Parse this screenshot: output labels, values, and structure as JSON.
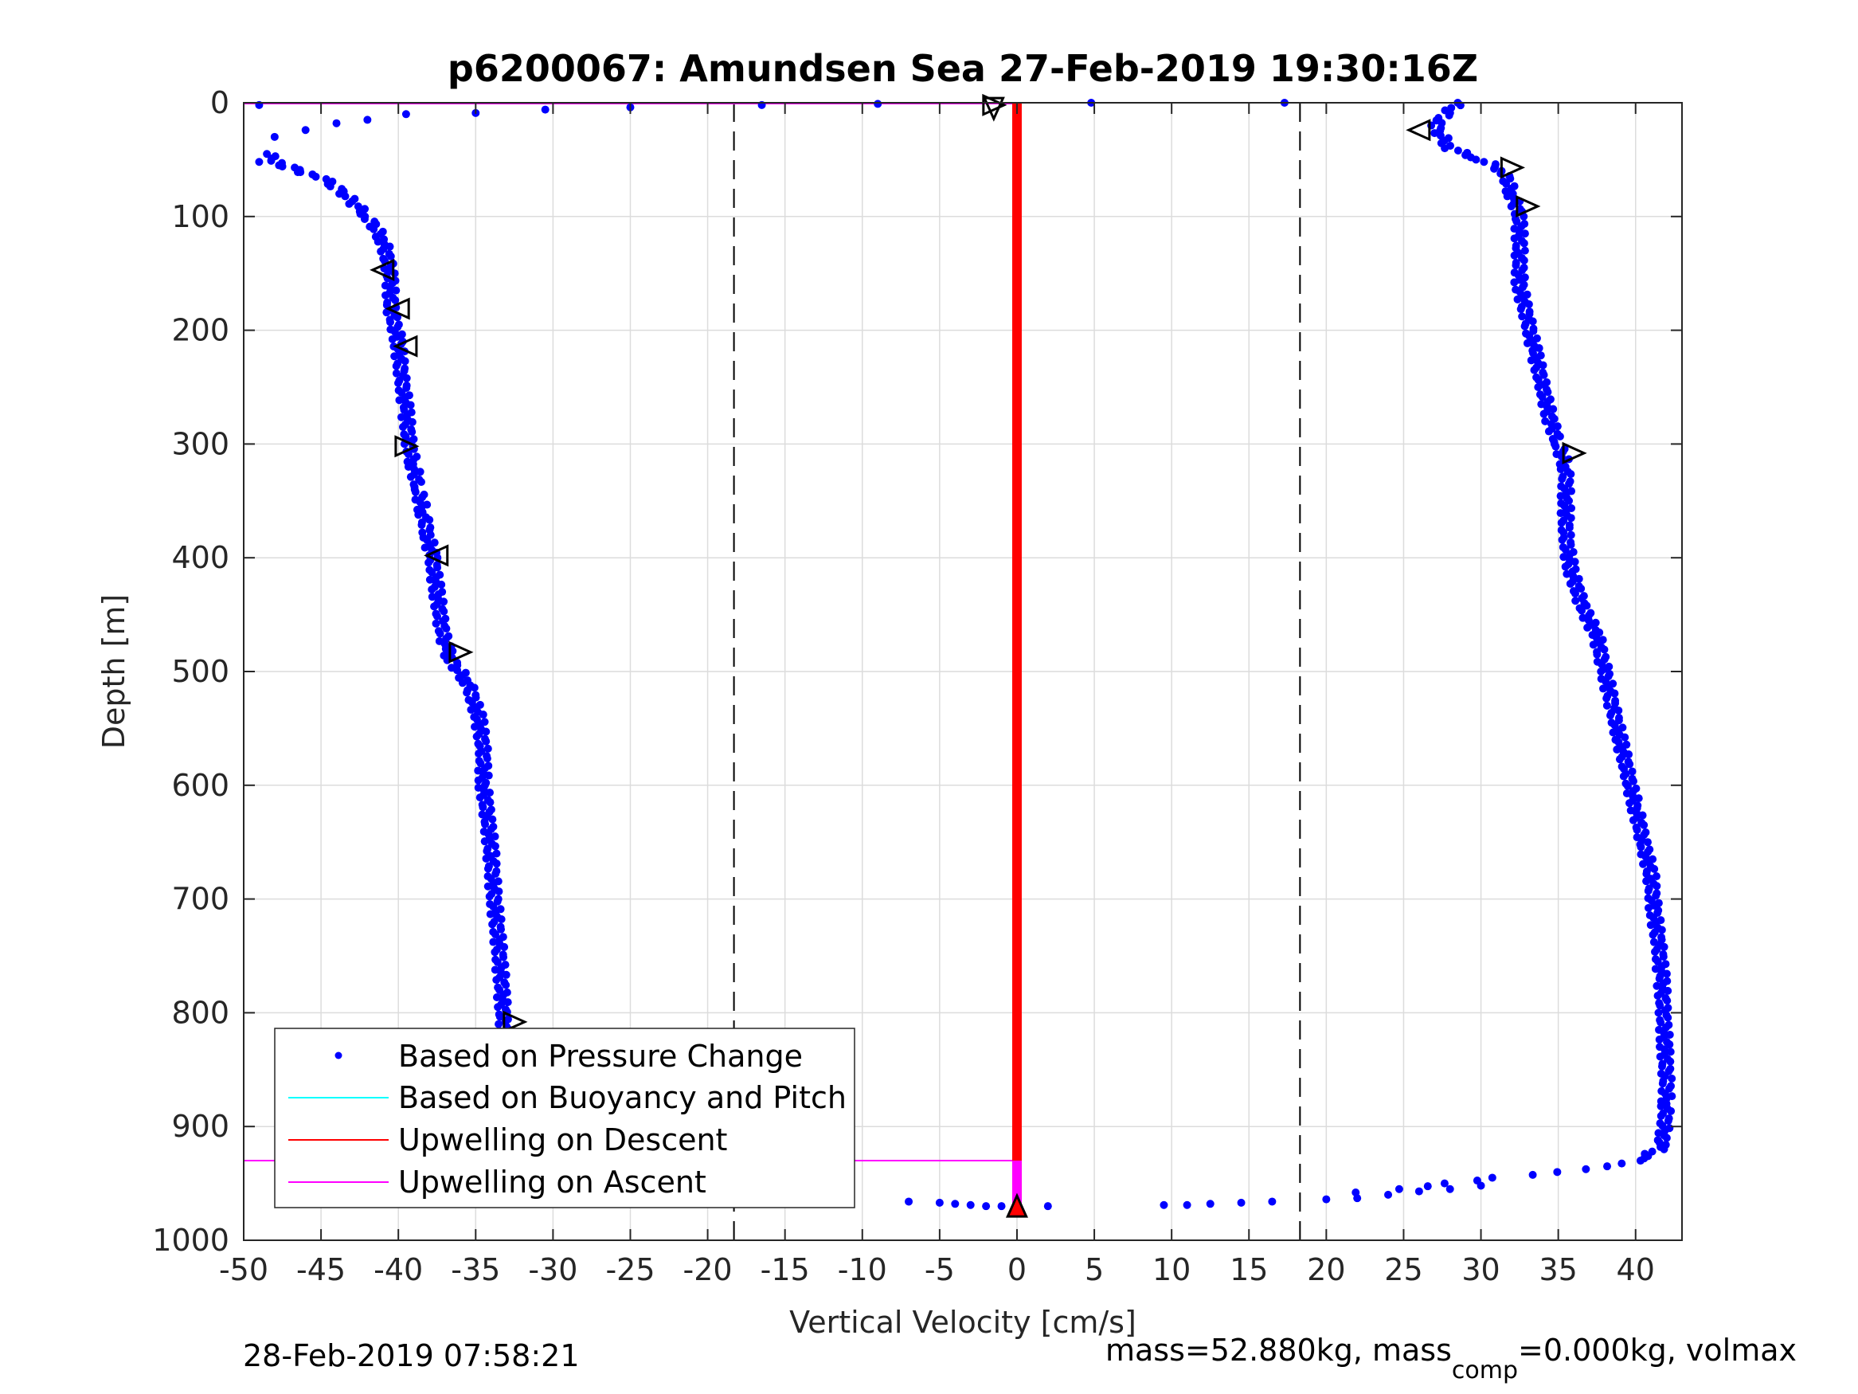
{
  "chart_data": {
    "type": "scatter",
    "title": "p6200067: Amundsen Sea 27-Feb-2019 19:30:16Z",
    "xlabel": "Vertical Velocity [cm/s]",
    "ylabel": "Depth [m]",
    "xlim": [
      -50,
      43
    ],
    "ylim": [
      0,
      1000
    ],
    "y_reversed": true,
    "grid": true,
    "x_ticks": [
      "-50",
      "-45",
      "-40",
      "-35",
      "-30",
      "-25",
      "-20",
      "-15",
      "-10",
      "-5",
      "0",
      "5",
      "10",
      "15",
      "20",
      "25",
      "30",
      "35",
      "40"
    ],
    "y_ticks": [
      "0",
      "100",
      "200",
      "300",
      "400",
      "500",
      "600",
      "700",
      "800",
      "900",
      "1000"
    ],
    "threshold_lines_x": [
      -18.3,
      18.3
    ],
    "legend_position": "bottom-left",
    "series": [
      {
        "name": "Based on Pressure Change",
        "style": "dots",
        "color": "#0000ff",
        "descent": {
          "x": [
            -48.5,
            -47.5,
            -45,
            -43.5,
            -42,
            -41,
            -40.5,
            -40.5,
            -40,
            -39.8,
            -39.5,
            -39.3,
            -39,
            -38.7,
            -38.4,
            -38.1,
            -37.8,
            -37.5,
            -37.2,
            -36.9,
            -36.6,
            -35.5,
            -34.8,
            -34.5,
            -34.5,
            -34.2,
            -34,
            -33.8,
            -33.5,
            -33.3,
            -33.2,
            -33,
            -32.8,
            -32.7,
            -32.6,
            -32.5,
            -32.4
          ],
          "y": [
            45,
            55,
            65,
            80,
            100,
            120,
            150,
            180,
            210,
            240,
            270,
            300,
            320,
            340,
            360,
            380,
            400,
            430,
            460,
            480,
            490,
            510,
            540,
            570,
            600,
            630,
            660,
            700,
            740,
            780,
            810,
            840,
            870,
            900,
            930,
            950,
            960
          ]
        },
        "ascent": {
          "x": [
            28.5,
            27,
            28,
            30,
            31.5,
            32,
            32.5,
            32.5,
            32.5,
            33,
            33.5,
            34,
            34.5,
            35,
            35.5,
            35.5,
            35.5,
            35.8,
            36.5,
            37.5,
            38,
            38.5,
            39,
            39.5,
            40,
            40.5,
            41,
            41.2,
            41.5,
            41.7,
            41.8,
            41.9,
            42,
            42,
            41.8,
            41.5,
            40,
            38,
            35,
            31,
            28,
            25,
            22,
            20
          ],
          "y": [
            0,
            20,
            40,
            50,
            60,
            80,
            100,
            130,
            160,
            190,
            220,
            250,
            280,
            300,
            320,
            350,
            380,
            410,
            440,
            470,
            500,
            530,
            560,
            590,
            620,
            650,
            680,
            710,
            740,
            770,
            800,
            830,
            860,
            880,
            910,
            920,
            930,
            935,
            940,
            945,
            950,
            955,
            958,
            960
          ]
        }
      },
      {
        "name": "Based on Buoyancy and Pitch",
        "style": "line",
        "color": "#00ffff"
      },
      {
        "name": "Upwelling on Descent",
        "style": "line",
        "color": "#ff0000",
        "x": 0,
        "depth_range": [
          0,
          965
        ]
      },
      {
        "name": "Upwelling on Ascent",
        "style": "line",
        "color": "#ff00ff",
        "x": 0,
        "depth_range": [
          930,
          970
        ]
      }
    ],
    "pitch_markers": {
      "color": "#000000",
      "points": [
        {
          "x": -1.5,
          "y": 2,
          "dir": "right"
        },
        {
          "x": -1.5,
          "y": 5,
          "dir": "down"
        },
        {
          "x": -41,
          "y": 147,
          "dir": "left"
        },
        {
          "x": -40,
          "y": 181,
          "dir": "left"
        },
        {
          "x": -39.5,
          "y": 214,
          "dir": "left"
        },
        {
          "x": -39.5,
          "y": 302,
          "dir": "right"
        },
        {
          "x": -37.5,
          "y": 398,
          "dir": "left"
        },
        {
          "x": -36,
          "y": 483,
          "dir": "right"
        },
        {
          "x": -32.5,
          "y": 808,
          "dir": "right"
        },
        {
          "x": 26,
          "y": 24,
          "dir": "left"
        },
        {
          "x": 32,
          "y": 57,
          "dir": "right"
        },
        {
          "x": 33,
          "y": 91,
          "dir": "right"
        },
        {
          "x": 36,
          "y": 308,
          "dir": "right"
        }
      ]
    },
    "red_markers": [
      {
        "x": 0,
        "y": 970,
        "shape": "triangle-up"
      },
      {
        "x": -32,
        "y": 960,
        "shape": "triangle-right"
      }
    ]
  },
  "footer": {
    "datetime": "28-Feb-2019 07:58:21",
    "mass_prefix": "mass=52.880kg, mass",
    "mass_sub": "comp",
    "mass_suffix": "=0.000kg, volmax"
  }
}
